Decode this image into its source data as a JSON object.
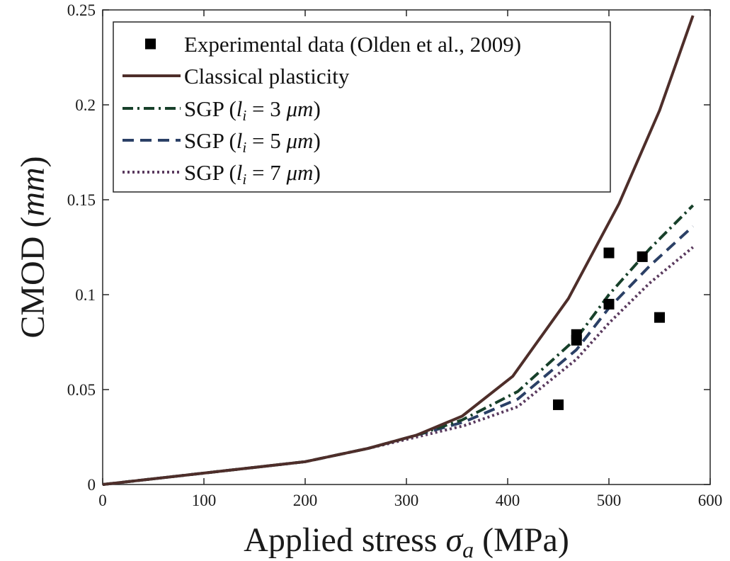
{
  "chart_data": {
    "type": "line",
    "xlabel": "Applied stress σa (MPa)",
    "xlabel_main": "Applied stress ",
    "xlabel_sym": "σ",
    "xlabel_sub": "a",
    "xlabel_unit": " (MPa)",
    "ylabel": "CMOD (mm)",
    "ylabel_main": "CMOD (",
    "ylabel_unit": "mm",
    "ylabel_close": ")",
    "xlim": [
      0,
      600
    ],
    "ylim": [
      0,
      0.25
    ],
    "xticks": [
      0,
      100,
      200,
      300,
      400,
      500,
      600
    ],
    "yticks": [
      0,
      0.05,
      0.1,
      0.15,
      0.2,
      0.25
    ],
    "xtick_labels": [
      "0",
      "100",
      "200",
      "300",
      "400",
      "500",
      "600"
    ],
    "ytick_labels": [
      "0",
      "0.05",
      "0.1",
      "0.15",
      "0.2",
      "0.25"
    ],
    "grid": false,
    "legend_position": "top-left",
    "series": [
      {
        "name": "Experimental data (Olden et al., 2009)",
        "kind": "scatter",
        "color": "#000000",
        "points": [
          [
            450,
            0.042
          ],
          [
            468,
            0.076
          ],
          [
            468,
            0.079
          ],
          [
            500,
            0.095
          ],
          [
            500,
            0.122
          ],
          [
            533,
            0.12
          ],
          [
            550,
            0.088
          ]
        ]
      },
      {
        "name": "Classical plasticity",
        "kind": "line",
        "style": "solid",
        "color": "#4e2e2a",
        "points": [
          [
            0,
            0
          ],
          [
            100,
            0.006
          ],
          [
            200,
            0.012
          ],
          [
            262,
            0.019
          ],
          [
            310,
            0.026
          ],
          [
            355,
            0.036
          ],
          [
            405,
            0.057
          ],
          [
            460,
            0.098
          ],
          [
            510,
            0.148
          ],
          [
            550,
            0.197
          ],
          [
            583,
            0.247
          ]
        ]
      },
      {
        "name": "SGP (li = 3 μm)",
        "legend": {
          "prefix": "SGP (",
          "var": "l",
          "sub": "i",
          "eq": " = 3 ",
          "unit": "μm",
          "suffix": ")"
        },
        "kind": "line",
        "style": "dashdot",
        "color": "#17402a",
        "points": [
          [
            0,
            0
          ],
          [
            100,
            0.006
          ],
          [
            200,
            0.012
          ],
          [
            262,
            0.019
          ],
          [
            310,
            0.026
          ],
          [
            355,
            0.034
          ],
          [
            410,
            0.049
          ],
          [
            468,
            0.077
          ],
          [
            500,
            0.1
          ],
          [
            540,
            0.124
          ],
          [
            583,
            0.147
          ]
        ]
      },
      {
        "name": "SGP (li = 5 μm)",
        "legend": {
          "prefix": "SGP (",
          "var": "l",
          "sub": "i",
          "eq": " = 5 ",
          "unit": "μm",
          "suffix": ")"
        },
        "kind": "line",
        "style": "dashed",
        "color": "#2b4066",
        "points": [
          [
            0,
            0
          ],
          [
            100,
            0.006
          ],
          [
            200,
            0.012
          ],
          [
            262,
            0.019
          ],
          [
            310,
            0.026
          ],
          [
            357,
            0.033
          ],
          [
            410,
            0.045
          ],
          [
            468,
            0.071
          ],
          [
            500,
            0.093
          ],
          [
            540,
            0.115
          ],
          [
            583,
            0.136
          ]
        ]
      },
      {
        "name": "SGP (li = 7 μm)",
        "legend": {
          "prefix": "SGP (",
          "var": "l",
          "sub": "i",
          "eq": " = 7 ",
          "unit": "μm",
          "suffix": ")"
        },
        "kind": "line",
        "style": "dotted",
        "color": "#5a3a5e",
        "points": [
          [
            0,
            0
          ],
          [
            100,
            0.006
          ],
          [
            200,
            0.012
          ],
          [
            262,
            0.019
          ],
          [
            310,
            0.025
          ],
          [
            357,
            0.031
          ],
          [
            410,
            0.041
          ],
          [
            468,
            0.066
          ],
          [
            500,
            0.085
          ],
          [
            540,
            0.106
          ],
          [
            583,
            0.125
          ]
        ]
      }
    ]
  }
}
